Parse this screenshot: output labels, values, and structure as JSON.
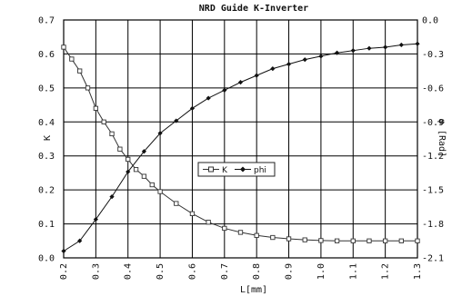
{
  "chart_data": {
    "type": "line",
    "title": "NRD Guide K-Inverter",
    "xlabel": "L[mm]",
    "ylabel_left": "K",
    "ylabel_right": "φ [Rad]",
    "xlim": [
      0.2,
      1.3
    ],
    "xticks": [
      "0.2",
      "0.3",
      "0.4",
      "0.5",
      "0.6",
      "0.7",
      "0.8",
      "0.9",
      "1.0",
      "1.1",
      "1.2",
      "1.3"
    ],
    "ylim_left": [
      0.0,
      0.7
    ],
    "yticks_left": [
      "0.0",
      "0.1",
      "0.2",
      "0.3",
      "0.4",
      "0.5",
      "0.6",
      "0.7"
    ],
    "ylim_right": [
      -2.1,
      0.0
    ],
    "yticks_right": [
      "-2.1",
      "-1.8",
      "-1.5",
      "-1.2",
      "-0.9",
      "-0.6",
      "-0.3",
      "0.0"
    ],
    "grid": true,
    "legend": {
      "placement": "center-right"
    },
    "series": [
      {
        "name": "K",
        "axis": "left",
        "marker": "square-open",
        "color": "#333333",
        "x": [
          0.2,
          0.225,
          0.25,
          0.275,
          0.3,
          0.325,
          0.35,
          0.375,
          0.4,
          0.425,
          0.45,
          0.475,
          0.5,
          0.55,
          0.6,
          0.65,
          0.7,
          0.75,
          0.8,
          0.85,
          0.9,
          0.95,
          1.0,
          1.05,
          1.1,
          1.15,
          1.2,
          1.25,
          1.3
        ],
        "values": [
          0.62,
          0.585,
          0.55,
          0.5,
          0.44,
          0.4,
          0.365,
          0.32,
          0.29,
          0.26,
          0.24,
          0.215,
          0.195,
          0.16,
          0.13,
          0.105,
          0.087,
          0.075,
          0.066,
          0.06,
          0.056,
          0.053,
          0.051,
          0.05,
          0.05,
          0.05,
          0.05,
          0.05,
          0.05
        ]
      },
      {
        "name": "phi",
        "axis": "right",
        "marker": "diamond-filled",
        "color": "#111111",
        "x": [
          0.2,
          0.25,
          0.3,
          0.35,
          0.4,
          0.45,
          0.5,
          0.55,
          0.6,
          0.65,
          0.7,
          0.75,
          0.8,
          0.85,
          0.9,
          0.95,
          1.0,
          1.05,
          1.1,
          1.15,
          1.2,
          1.25,
          1.3
        ],
        "values": [
          -2.04,
          -1.95,
          -1.76,
          -1.56,
          -1.34,
          -1.16,
          -1.0,
          -0.89,
          -0.78,
          -0.69,
          -0.62,
          -0.55,
          -0.49,
          -0.43,
          -0.39,
          -0.35,
          -0.32,
          -0.29,
          -0.27,
          -0.25,
          -0.24,
          -0.22,
          -0.21
        ]
      }
    ]
  }
}
